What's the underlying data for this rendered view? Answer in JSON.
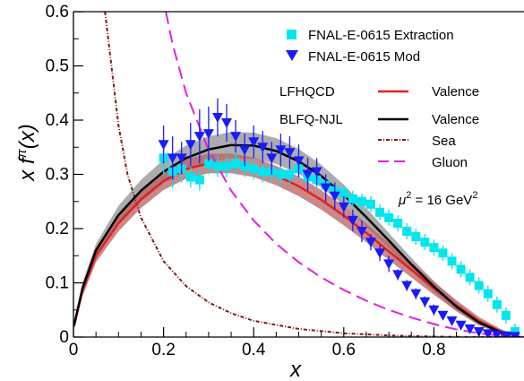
{
  "chart_data": {
    "type": "scatter",
    "xlabel": "x",
    "ylabel_parts": [
      "x f",
      "π",
      "(x)"
    ],
    "xlim": [
      0,
      1
    ],
    "ylim": [
      0,
      0.6
    ],
    "xticks": [
      {
        "value": 0,
        "label": "0"
      },
      {
        "value": 0.2,
        "label": "0.2"
      },
      {
        "value": 0.4,
        "label": "0.4"
      },
      {
        "value": 0.6,
        "label": "0.6"
      },
      {
        "value": 0.8,
        "label": "0.8"
      }
    ],
    "yticks": [
      {
        "value": 0,
        "label": "0"
      },
      {
        "value": 0.1,
        "label": "0.1"
      },
      {
        "value": 0.2,
        "label": "0.2"
      },
      {
        "value": 0.3,
        "label": "0.3"
      },
      {
        "value": 0.4,
        "label": "0.4"
      },
      {
        "value": 0.5,
        "label": "0.5"
      },
      {
        "value": 0.6,
        "label": "0.6"
      }
    ],
    "annotation": {
      "prefix": "μ",
      "sup": "2",
      "mid": " = 16 GeV",
      "sup2": "2"
    },
    "legend": {
      "extraction": "FNAL-E-0615 Extraction",
      "mod": "FNAL-E-0615 Mod",
      "lfhqcd": "LFHQCD",
      "blfq": "BLFQ-NJL",
      "valence_red": "Valence",
      "valence_black": "Valence",
      "sea": "Sea",
      "gluon": "Gluon"
    },
    "colors": {
      "extraction": "#00e5ee",
      "mod": "#1a1aff",
      "lfhqcd": "#e32020",
      "blfq": "#000000",
      "band_lfhqcd": "#b86060",
      "band_blfq": "#909090",
      "sea": "#7a1a1a",
      "gluon": "#e020e0"
    },
    "curves": {
      "lfhqcd_valence": {
        "x": [
          0.001,
          0.02,
          0.05,
          0.1,
          0.15,
          0.2,
          0.25,
          0.3,
          0.35,
          0.4,
          0.45,
          0.5,
          0.55,
          0.6,
          0.65,
          0.7,
          0.75,
          0.8,
          0.85,
          0.9,
          0.95,
          0.99
        ],
        "y": [
          0.02,
          0.085,
          0.15,
          0.21,
          0.254,
          0.288,
          0.31,
          0.32,
          0.32,
          0.313,
          0.298,
          0.278,
          0.253,
          0.224,
          0.192,
          0.158,
          0.124,
          0.09,
          0.058,
          0.03,
          0.01,
          0.001
        ],
        "band": {
          "upper": [
            0.025,
            0.095,
            0.162,
            0.225,
            0.27,
            0.305,
            0.328,
            0.338,
            0.338,
            0.331,
            0.316,
            0.296,
            0.271,
            0.242,
            0.209,
            0.174,
            0.138,
            0.102,
            0.068,
            0.037,
            0.014,
            0.002
          ],
          "lower": [
            0.015,
            0.075,
            0.138,
            0.195,
            0.238,
            0.271,
            0.292,
            0.302,
            0.302,
            0.295,
            0.28,
            0.26,
            0.235,
            0.206,
            0.175,
            0.142,
            0.11,
            0.078,
            0.048,
            0.023,
            0.006,
            0.0
          ]
        }
      },
      "blfq_valence": {
        "x": [
          0.001,
          0.02,
          0.05,
          0.1,
          0.15,
          0.2,
          0.25,
          0.3,
          0.35,
          0.4,
          0.45,
          0.5,
          0.55,
          0.6,
          0.65,
          0.7,
          0.75,
          0.8,
          0.85,
          0.9,
          0.95,
          0.99
        ],
        "y": [
          0.02,
          0.09,
          0.16,
          0.225,
          0.27,
          0.305,
          0.33,
          0.346,
          0.354,
          0.353,
          0.343,
          0.324,
          0.297,
          0.262,
          0.221,
          0.178,
          0.134,
          0.093,
          0.056,
          0.027,
          0.008,
          0.001
        ],
        "band": {
          "upper": [
            0.023,
            0.1,
            0.172,
            0.242,
            0.29,
            0.327,
            0.353,
            0.37,
            0.378,
            0.377,
            0.367,
            0.347,
            0.318,
            0.281,
            0.238,
            0.192,
            0.146,
            0.103,
            0.064,
            0.033,
            0.011,
            0.002
          ],
          "lower": [
            0.017,
            0.08,
            0.148,
            0.208,
            0.25,
            0.283,
            0.307,
            0.322,
            0.33,
            0.329,
            0.319,
            0.301,
            0.276,
            0.243,
            0.204,
            0.164,
            0.122,
            0.083,
            0.048,
            0.021,
            0.005,
            0.0
          ]
        }
      },
      "sea": {
        "x": [
          0.07,
          0.1,
          0.12,
          0.15,
          0.2,
          0.25,
          0.3,
          0.35,
          0.4,
          0.5,
          0.6,
          0.7,
          0.8,
          0.9,
          1.0
        ],
        "y": [
          0.6,
          0.39,
          0.3,
          0.22,
          0.14,
          0.094,
          0.064,
          0.044,
          0.03,
          0.015,
          0.007,
          0.003,
          0.001,
          0.0,
          0.0
        ]
      },
      "gluon": {
        "x": [
          0.205,
          0.22,
          0.25,
          0.3,
          0.35,
          0.4,
          0.45,
          0.5,
          0.55,
          0.6,
          0.65,
          0.7,
          0.75,
          0.8,
          0.85,
          0.9,
          0.95,
          1.0
        ],
        "y": [
          0.6,
          0.54,
          0.45,
          0.345,
          0.27,
          0.215,
          0.172,
          0.138,
          0.11,
          0.087,
          0.067,
          0.05,
          0.036,
          0.024,
          0.014,
          0.007,
          0.002,
          0.0
        ]
      }
    },
    "series": [
      {
        "key": "extraction",
        "x": [
          0.2,
          0.22,
          0.24,
          0.26,
          0.28,
          0.3,
          0.32,
          0.34,
          0.36,
          0.38,
          0.4,
          0.42,
          0.44,
          0.46,
          0.48,
          0.5,
          0.52,
          0.54,
          0.56,
          0.58,
          0.6,
          0.62,
          0.64,
          0.66,
          0.68,
          0.7,
          0.72,
          0.74,
          0.76,
          0.78,
          0.8,
          0.82,
          0.84,
          0.86,
          0.88,
          0.9,
          0.92,
          0.94,
          0.96,
          0.98
        ],
        "y": [
          0.33,
          0.305,
          0.31,
          0.295,
          0.29,
          0.32,
          0.315,
          0.315,
          0.32,
          0.315,
          0.31,
          0.305,
          0.305,
          0.3,
          0.3,
          0.31,
          0.295,
          0.29,
          0.28,
          0.27,
          0.265,
          0.255,
          0.25,
          0.245,
          0.23,
          0.22,
          0.21,
          0.195,
          0.185,
          0.175,
          0.165,
          0.155,
          0.14,
          0.125,
          0.11,
          0.095,
          0.08,
          0.06,
          0.04,
          0.01
        ],
        "err": [
          0.03,
          0.03,
          0.025,
          0.02,
          0.02,
          0.02,
          0.02,
          0.02,
          0.02,
          0.02,
          0.02,
          0.02,
          0.02,
          0.02,
          0.02,
          0.02,
          0.015,
          0.015,
          0.015,
          0.015,
          0.015,
          0.015,
          0.015,
          0.015,
          0.015,
          0.015,
          0.015,
          0.015,
          0.015,
          0.015,
          0.015,
          0.015,
          0.015,
          0.015,
          0.015,
          0.015,
          0.015,
          0.015,
          0.015,
          0.015
        ]
      },
      {
        "key": "mod",
        "x": [
          0.2,
          0.22,
          0.24,
          0.26,
          0.28,
          0.3,
          0.32,
          0.34,
          0.36,
          0.38,
          0.4,
          0.42,
          0.44,
          0.46,
          0.48,
          0.5,
          0.52,
          0.54,
          0.56,
          0.58,
          0.6,
          0.62,
          0.64,
          0.66,
          0.68,
          0.7,
          0.72,
          0.74,
          0.76,
          0.78,
          0.8,
          0.82,
          0.84,
          0.86,
          0.88,
          0.9,
          0.92,
          0.94,
          0.96,
          0.98
        ],
        "y": [
          0.355,
          0.33,
          0.33,
          0.355,
          0.37,
          0.375,
          0.405,
          0.395,
          0.37,
          0.345,
          0.36,
          0.35,
          0.33,
          0.345,
          0.34,
          0.325,
          0.3,
          0.305,
          0.275,
          0.26,
          0.24,
          0.215,
          0.195,
          0.175,
          0.155,
          0.135,
          0.115,
          0.095,
          0.08,
          0.065,
          0.05,
          0.04,
          0.03,
          0.022,
          0.015,
          0.01,
          0.006,
          0.004,
          0.002,
          0.001
        ],
        "err": [
          0.035,
          0.04,
          0.03,
          0.04,
          0.05,
          0.05,
          0.035,
          0.035,
          0.03,
          0.03,
          0.03,
          0.03,
          0.03,
          0.03,
          0.03,
          0.03,
          0.03,
          0.025,
          0.025,
          0.025,
          0.02,
          0.02,
          0.02,
          0.015,
          0.015,
          0.015,
          0.01,
          0.01,
          0.01,
          0.01,
          0.01,
          0.008,
          0.006,
          0.005,
          0.005,
          0.004,
          0.003,
          0.003,
          0.002,
          0.002
        ]
      }
    ]
  }
}
